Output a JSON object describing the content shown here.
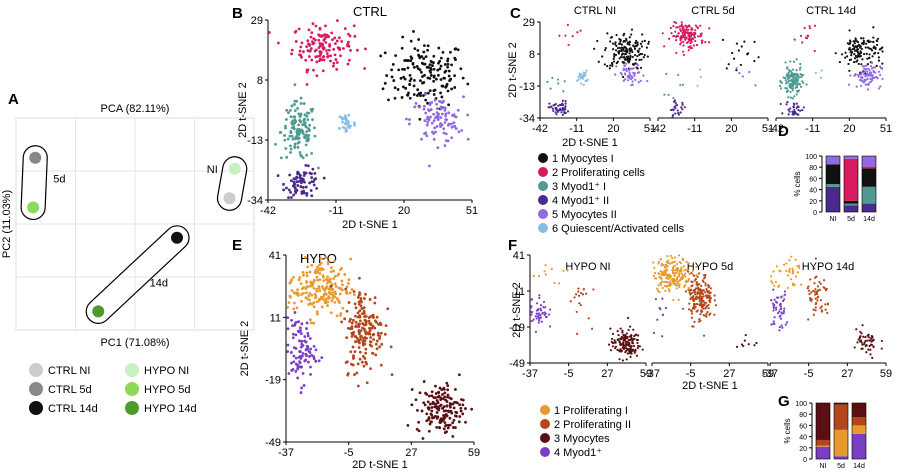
{
  "colors": {
    "ctrl": {
      "myocytes1": "#111111",
      "proliferating": "#d81b60",
      "myod1_1": "#4f9a91",
      "myod1_2": "#4a2a8c",
      "myocytes2": "#8f6ae0",
      "quiescent": "#88bde6"
    },
    "hypo": {
      "prolif1": "#e89a2e",
      "prolif2": "#b5461b",
      "myocytes": "#5a0f12",
      "myod1": "#7a3fc4"
    },
    "pca": {
      "ctrl_ni": "#cccccc",
      "ctrl_5d": "#888888",
      "ctrl_14d": "#111111",
      "hypo_ni": "#c8f0c0",
      "hypo_5d": "#8ed85a",
      "hypo_14d": "#4f9a2b"
    }
  },
  "chart_data": [
    {
      "panel": "A",
      "type": "scatter",
      "title": "",
      "axis_top_label": "PCA (82.11%)",
      "xlabel": "PC1 (71.08%)",
      "ylabel": "PC2 (11.03%)",
      "grid": true,
      "group_labels": [
        "5d",
        "NI",
        "14d"
      ],
      "legend": [
        {
          "label": "CTRL NI",
          "color": "#cccccc"
        },
        {
          "label": "HYPO NI",
          "color": "#c8f0c0"
        },
        {
          "label": "CTRL 5d",
          "color": "#888888"
        },
        {
          "label": "HYPO 5d",
          "color": "#8ed85a"
        },
        {
          "label": "CTRL 14d",
          "color": "#111111"
        },
        {
          "label": "HYPO 14d",
          "color": "#4f9a2b"
        }
      ],
      "points": [
        {
          "label": "CTRL 5d",
          "x": -0.95,
          "y": 0.72
        },
        {
          "label": "HYPO 5d",
          "x": -0.97,
          "y": 0.18
        },
        {
          "label": "HYPO NI",
          "x": 0.95,
          "y": 0.6
        },
        {
          "label": "CTRL NI",
          "x": 0.9,
          "y": 0.28
        },
        {
          "label": "CTRL 14d",
          "x": 0.4,
          "y": -0.15
        },
        {
          "label": "HYPO 14d",
          "x": -0.35,
          "y": -0.95
        }
      ]
    },
    {
      "panel": "B",
      "type": "scatter",
      "title": "CTRL",
      "xlabel": "2D t-SNE 1",
      "ylabel": "2D t-SNE 2",
      "xticks": [
        -42,
        -11,
        20,
        51
      ],
      "yticks": [
        29,
        8,
        -13,
        -34
      ],
      "xlim": [
        -42,
        51
      ],
      "ylim": [
        -34,
        29
      ],
      "clusters": [
        {
          "name": "1 Myocytes I",
          "cx": 30,
          "cy": 10,
          "sx": 9,
          "sy": 6,
          "n": 160,
          "color": "#111111"
        },
        {
          "name": "2 Proliferating cells",
          "cx": -17,
          "cy": 20,
          "sx": 7,
          "sy": 4,
          "n": 140,
          "color": "#d81b60"
        },
        {
          "name": "3 Myod1+ I",
          "cx": -28,
          "cy": -10,
          "sx": 4,
          "sy": 5,
          "n": 130,
          "color": "#4f9a91"
        },
        {
          "name": "4 Myod1+ II",
          "cx": -26,
          "cy": -28,
          "sx": 4,
          "sy": 2.5,
          "n": 80,
          "color": "#4a2a8c"
        },
        {
          "name": "5 Myocytes II",
          "cx": 35,
          "cy": -6,
          "sx": 6,
          "sy": 4,
          "n": 100,
          "color": "#8f6ae0"
        },
        {
          "name": "6 Quiescent/Activated cells",
          "cx": -6,
          "cy": -7,
          "sx": 2,
          "sy": 2,
          "n": 30,
          "color": "#88bde6"
        }
      ]
    },
    {
      "panel": "C",
      "type": "scatter",
      "subplots": [
        {
          "title": "CTRL NI",
          "xticks": [
            -42,
            -11,
            20,
            51
          ]
        },
        {
          "title": "CTRL 5d",
          "xticks": [
            -42,
            -11,
            20,
            51
          ]
        },
        {
          "title": "CTRL 14d",
          "xticks": [
            -42,
            -11,
            20,
            51
          ]
        }
      ],
      "xlabel": "2D t-SNE 1",
      "ylabel": "2D t-SNE 2",
      "yticks": [
        29,
        8,
        -13,
        -34
      ],
      "xlim": [
        -42,
        51
      ],
      "ylim": [
        -34,
        29
      ],
      "legend": [
        {
          "label": "1 Myocytes I",
          "color": "#111111"
        },
        {
          "label": "2 Proliferating cells",
          "color": "#d81b60"
        },
        {
          "label": "3 Myod1⁺ I",
          "color": "#4f9a91"
        },
        {
          "label": "4 Myod1⁺ II",
          "color": "#4a2a8c"
        },
        {
          "label": "5 Myocytes II",
          "color": "#8f6ae0"
        },
        {
          "label": "6 Quiescent/Activated cells",
          "color": "#88bde6"
        }
      ]
    },
    {
      "panel": "D",
      "type": "bar",
      "stacked": true,
      "ylabel": "% cells",
      "categories": [
        "NI",
        "5d",
        "14d"
      ],
      "ylim": [
        0,
        100
      ],
      "yticks": [
        0,
        20,
        40,
        60,
        80,
        100
      ],
      "series": [
        {
          "color": "#4a2a8c",
          "values": [
            45,
            12,
            15
          ]
        },
        {
          "color": "#4f9a91",
          "values": [
            5,
            3,
            30
          ]
        },
        {
          "color": "#111111",
          "values": [
            35,
            5,
            33
          ]
        },
        {
          "color": "#d81b60",
          "values": [
            0,
            75,
            3
          ]
        },
        {
          "color": "#8f6ae0",
          "values": [
            15,
            5,
            19
          ]
        }
      ]
    },
    {
      "panel": "E",
      "type": "scatter",
      "title": "HYPO",
      "xlabel": "2D t-SNE 1",
      "ylabel": "2D t-SNE 2",
      "xticks": [
        -37,
        -5,
        27,
        59
      ],
      "yticks": [
        41,
        11,
        -19,
        -49
      ],
      "xlim": [
        -37,
        59
      ],
      "ylim": [
        -49,
        41
      ],
      "clusters": [
        {
          "name": "1 Proliferating I",
          "cx": -20,
          "cy": 25,
          "sx": 8,
          "sy": 7,
          "n": 200,
          "color": "#e89a2e"
        },
        {
          "name": "2 Proliferating II",
          "cx": 3,
          "cy": 5,
          "sx": 5,
          "sy": 10,
          "n": 180,
          "color": "#b5461b"
        },
        {
          "name": "3 Myocytes",
          "cx": 42,
          "cy": -33,
          "sx": 6,
          "sy": 6,
          "n": 160,
          "color": "#5a0f12"
        },
        {
          "name": "4 Myod1+",
          "cx": -30,
          "cy": -5,
          "sx": 4,
          "sy": 8,
          "n": 100,
          "color": "#7a3fc4"
        }
      ]
    },
    {
      "panel": "F",
      "type": "scatter",
      "subplots": [
        {
          "title": "HYPO NI",
          "xticks": [
            -37,
            -5,
            27,
            59
          ]
        },
        {
          "title": "HYPO 5d",
          "xticks": [
            -37,
            -5,
            27,
            59
          ]
        },
        {
          "title": "HYPO 14d",
          "xticks": [
            -37,
            -5,
            27,
            59
          ]
        }
      ],
      "xlabel": "2D t-SNE 1",
      "ylabel": "2D t-SNE 2",
      "yticks": [
        41,
        11,
        -19,
        -49
      ],
      "xlim": [
        -37,
        59
      ],
      "ylim": [
        -49,
        41
      ],
      "legend": [
        {
          "label": "1 Proliferating I",
          "color": "#e89a2e"
        },
        {
          "label": "2 Proliferating II",
          "color": "#b5461b"
        },
        {
          "label": "3 Myocytes",
          "color": "#5a0f12"
        },
        {
          "label": "4 Myod1⁺",
          "color": "#7a3fc4"
        }
      ]
    },
    {
      "panel": "G",
      "type": "bar",
      "stacked": true,
      "ylabel": "% cells",
      "categories": [
        "NI",
        "5d",
        "14d"
      ],
      "ylim": [
        0,
        100
      ],
      "yticks": [
        0,
        20,
        40,
        60,
        80,
        100
      ],
      "series": [
        {
          "color": "#7a3fc4",
          "values": [
            22,
            5,
            45
          ]
        },
        {
          "color": "#e89a2e",
          "values": [
            2,
            47,
            15
          ]
        },
        {
          "color": "#b5461b",
          "values": [
            10,
            45,
            15
          ]
        },
        {
          "color": "#5a0f12",
          "values": [
            66,
            3,
            25
          ]
        }
      ]
    }
  ],
  "panel_letters": [
    "A",
    "B",
    "C",
    "D",
    "E",
    "F",
    "G"
  ]
}
